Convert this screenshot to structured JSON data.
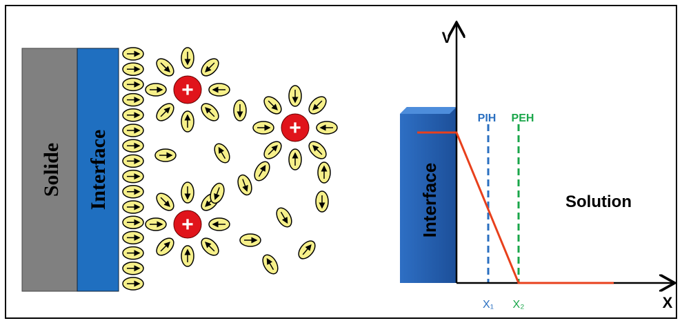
{
  "left": {
    "solid": "Solide",
    "interface": "Interface",
    "cations": [
      "+",
      "+",
      "+"
    ]
  },
  "right": {
    "y_axis": "V",
    "x_axis": "X",
    "interface": "Interface",
    "pih": "PIH",
    "peh": "PEH",
    "x1": "X₁",
    "x2": "X₂",
    "solution": "Solution"
  }
}
